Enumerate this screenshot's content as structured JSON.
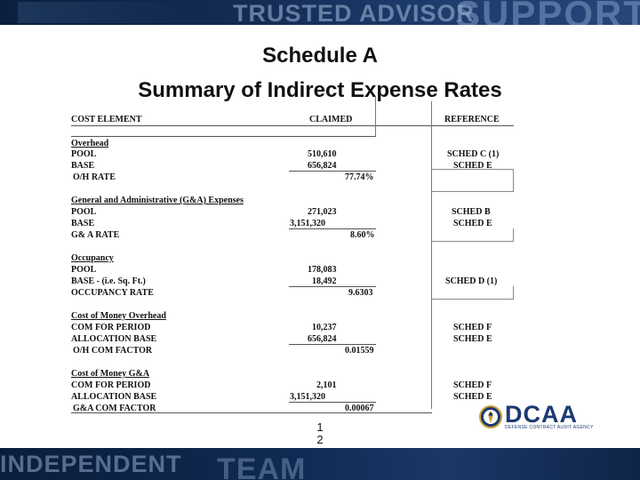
{
  "banner": {
    "top_text": "TRUSTED ADVISOR",
    "top_right_text": "SUPPORTIV",
    "bottom_text": "INDEPENDENT",
    "bottom_mid_text": "TEAM"
  },
  "title": {
    "line1": "Schedule A",
    "line2": "Summary of Indirect Expense Rates"
  },
  "headers": {
    "cost_element": "COST ELEMENT",
    "claimed": "CLAIMED",
    "reference": "REFERENCE"
  },
  "sections": [
    {
      "name": "Overhead",
      "rows": [
        {
          "label": "POOL",
          "amount": "510,610",
          "ref": "SCHED C (1)"
        },
        {
          "label": "BASE",
          "amount": "656,824",
          "ref": "SCHED E"
        }
      ],
      "rate_label": "O/H RATE",
      "rate_value": "77.74%"
    },
    {
      "name": "General and Administrative (G&A) Expenses",
      "rows": [
        {
          "label": "POOL",
          "amount": "271,023",
          "ref": "SCHED  B"
        },
        {
          "label": "BASE",
          "amount": "3,151,320",
          "ref": "SCHED E"
        }
      ],
      "rate_label": "G& A RATE",
      "rate_value": "8.60%"
    },
    {
      "name": "Occupancy",
      "rows": [
        {
          "label": "POOL",
          "amount": "178,083",
          "ref": ""
        },
        {
          "label": "BASE - (i.e. Sq. Ft.)",
          "amount": "18,492",
          "ref": "SCHED  D (1)"
        }
      ],
      "rate_label": "OCCUPANCY RATE",
      "rate_value": "9.6303"
    },
    {
      "name": "Cost of Money Overhead",
      "rows": [
        {
          "label": "COM FOR PERIOD",
          "amount": "10,237",
          "ref": "SCHED F"
        },
        {
          "label": "ALLOCATION  BASE",
          "amount": "656,824",
          "ref": "SCHED E"
        }
      ],
      "rate_label": "O/H COM FACTOR",
      "rate_value": "0.01559"
    },
    {
      "name": "Cost of Money G&A",
      "rows": [
        {
          "label": "COM FOR PERIOD",
          "amount": "2,101",
          "ref": "SCHED F"
        },
        {
          "label": "ALLOCATION  BASE",
          "amount": "3,151,320",
          "ref": "SCHED E"
        }
      ],
      "rate_label": "G&A COM FACTOR",
      "rate_value": "0.00067"
    }
  ],
  "logo": {
    "text": "DCAA",
    "subtitle": "DEFENSE CONTRACT AUDIT AGENCY",
    "seal_icon": "dcaa-seal-icon"
  },
  "page_number": {
    "line1": "1",
    "line2": "2"
  },
  "colors": {
    "banner_navy": "#102a52",
    "logo_blue": "#1b3a72",
    "logo_gold": "#c9a13a"
  }
}
